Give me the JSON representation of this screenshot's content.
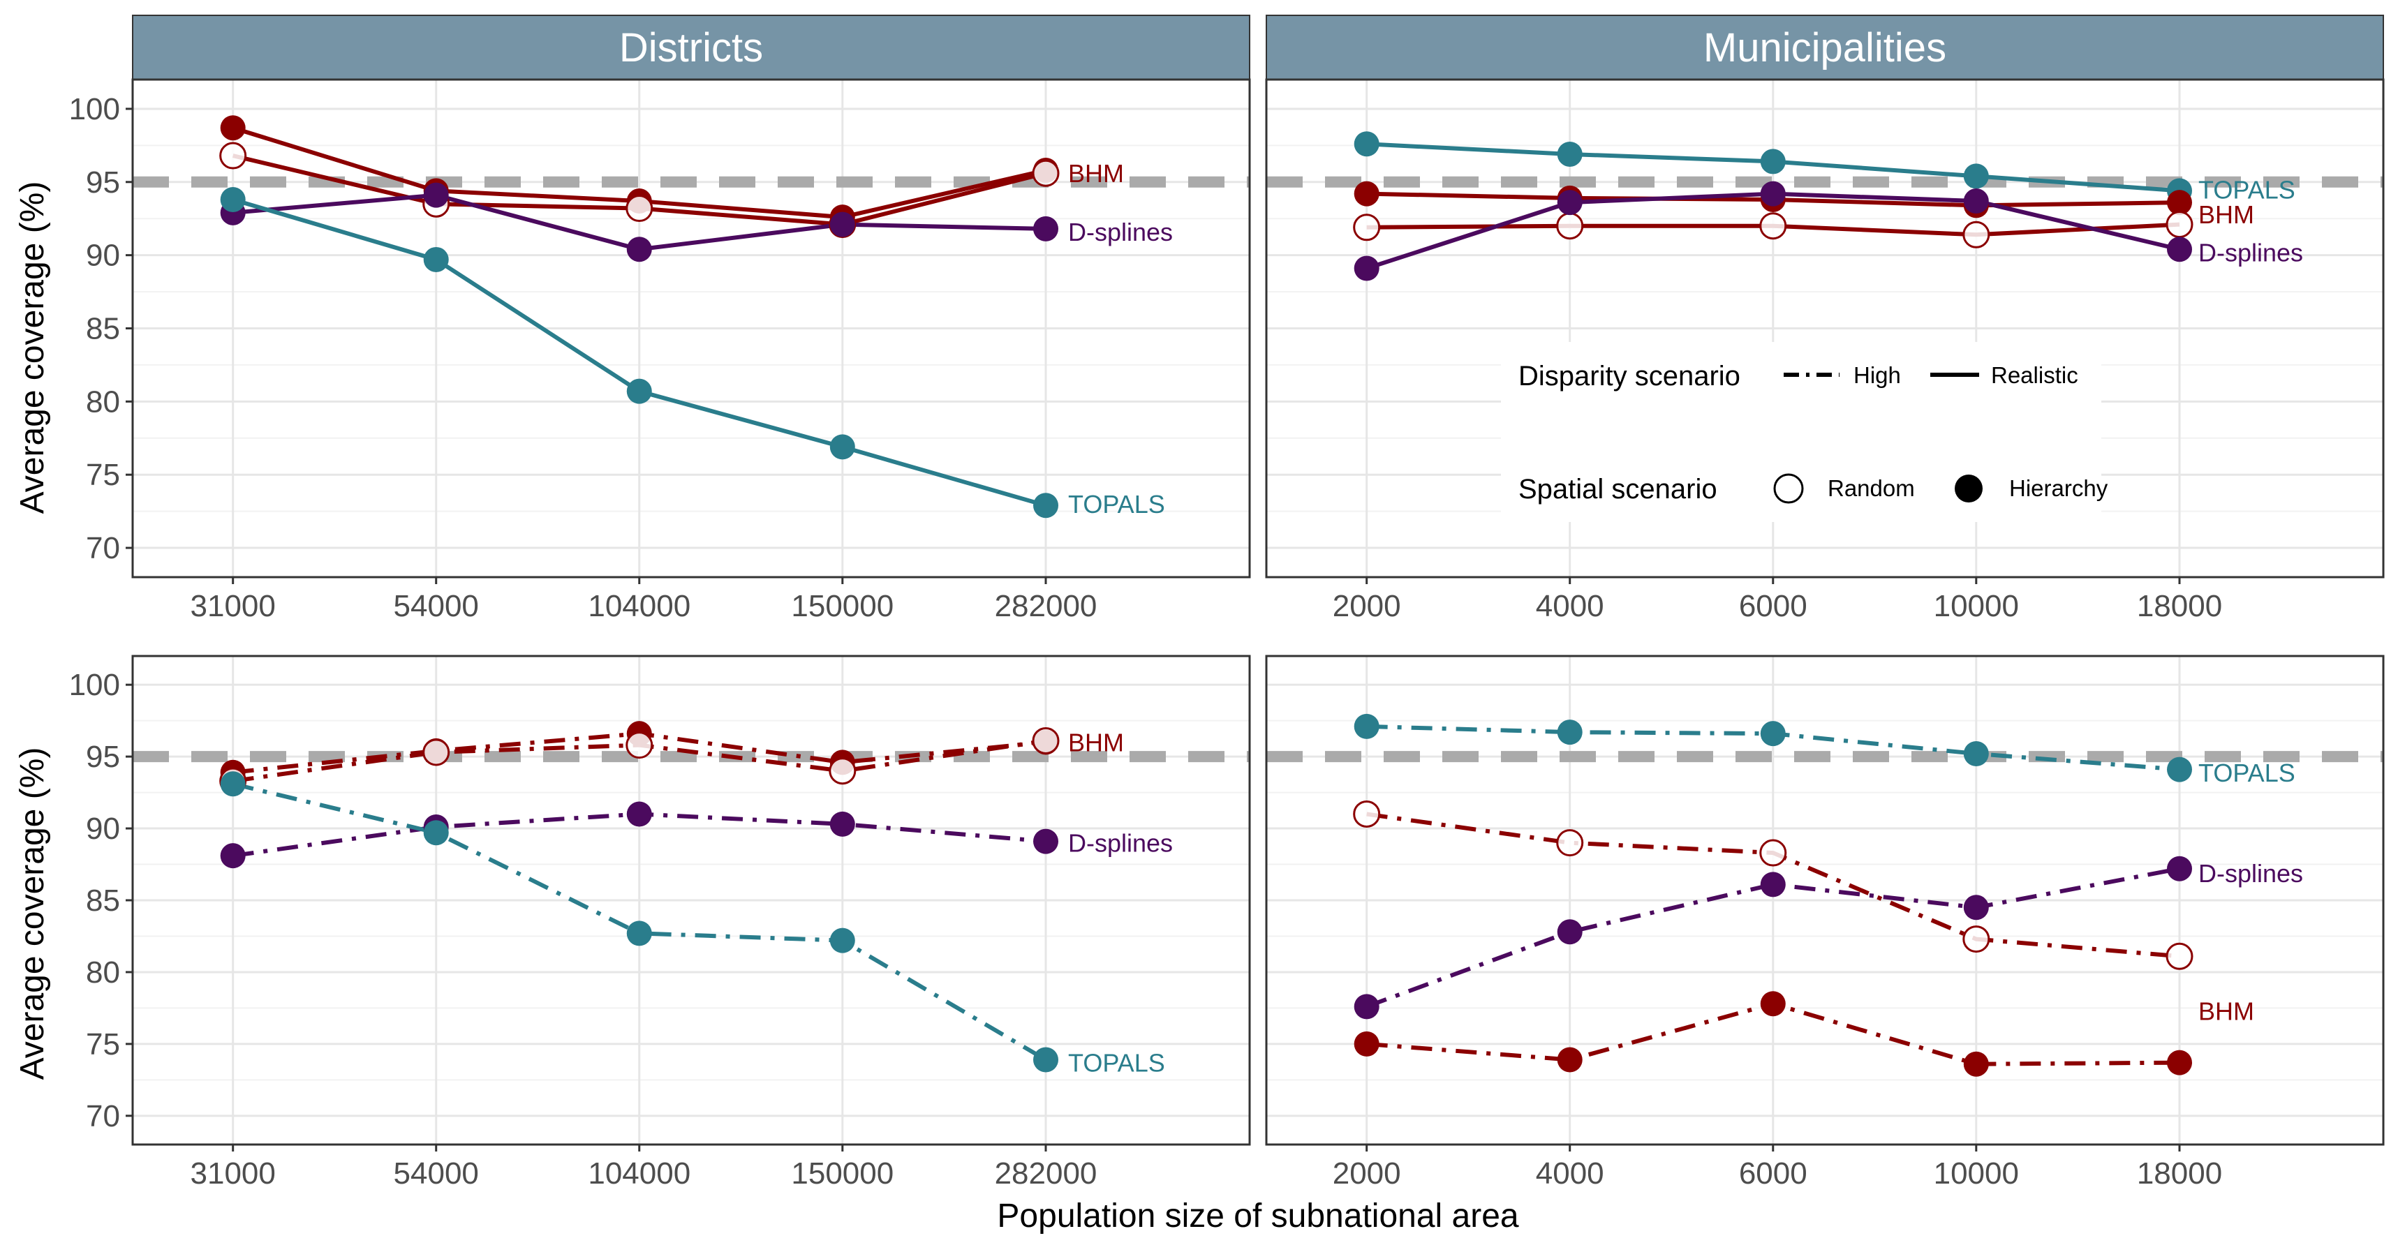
{
  "colors": {
    "BHM": "#8b0000",
    "D-splines": "#4b0a5e",
    "TOPALS": "#2a7d8c",
    "strip": "#7694a6",
    "reference": "#aaaaaa"
  },
  "facets": {
    "top": [
      "Districts",
      "Municipalities"
    ]
  },
  "axes": {
    "xlabel": "Population size of subnational area",
    "ylabel": "Average coverage (%)"
  },
  "legend": {
    "disparity_title": "Disparity scenario",
    "disparity_items": [
      "High",
      "Realistic"
    ],
    "spatial_title": "Spatial scenario",
    "spatial_items": [
      "Random",
      "Hierarchy"
    ]
  },
  "chart_data": [
    {
      "type": "line",
      "panel": "Districts / Realistic",
      "categories": [
        "31000",
        "54000",
        "104000",
        "150000",
        "282000"
      ],
      "ylim": [
        68,
        102
      ],
      "yticks": [
        70,
        75,
        80,
        85,
        90,
        95,
        100
      ],
      "reference_line": 95,
      "linetype": "Realistic",
      "series": [
        {
          "name": "BHM",
          "spatial": "Hierarchy",
          "values": [
            98.7,
            94.4,
            93.7,
            92.6,
            95.8
          ]
        },
        {
          "name": "BHM",
          "spatial": "Random",
          "values": [
            96.8,
            93.5,
            93.2,
            92.1,
            95.6
          ]
        },
        {
          "name": "D-splines",
          "spatial": "Hierarchy",
          "values": [
            92.9,
            94.1,
            90.4,
            92.1,
            91.8
          ]
        },
        {
          "name": "TOPALS",
          "spatial": "Hierarchy",
          "values": [
            93.8,
            89.7,
            80.7,
            76.9,
            72.9
          ]
        }
      ],
      "labels": [
        {
          "text": "BHM",
          "color": "BHM",
          "y": 95.6
        },
        {
          "text": "D-splines",
          "color": "D-splines",
          "y": 91.6
        },
        {
          "text": "TOPALS",
          "color": "TOPALS",
          "y": 73.0
        }
      ]
    },
    {
      "type": "line",
      "panel": "Municipalities / Realistic",
      "categories": [
        "2000",
        "4000",
        "6000",
        "10000",
        "18000"
      ],
      "ylim": [
        68,
        102
      ],
      "yticks": [
        70,
        75,
        80,
        85,
        90,
        95,
        100
      ],
      "reference_line": 95,
      "linetype": "Realistic",
      "series": [
        {
          "name": "TOPALS",
          "spatial": "Hierarchy",
          "values": [
            97.6,
            96.9,
            96.4,
            95.4,
            94.4
          ]
        },
        {
          "name": "BHM",
          "spatial": "Hierarchy",
          "values": [
            94.2,
            93.9,
            93.8,
            93.4,
            93.6
          ]
        },
        {
          "name": "BHM",
          "spatial": "Random",
          "values": [
            91.9,
            92.0,
            92.0,
            91.4,
            92.1
          ]
        },
        {
          "name": "D-splines",
          "spatial": "Hierarchy",
          "values": [
            89.1,
            93.6,
            94.2,
            93.7,
            90.4
          ]
        }
      ],
      "labels": [
        {
          "text": "TOPALS",
          "color": "TOPALS",
          "y": 94.5
        },
        {
          "text": "BHM",
          "color": "BHM",
          "y": 92.8
        },
        {
          "text": "D-splines",
          "color": "D-splines",
          "y": 90.2
        }
      ]
    },
    {
      "type": "line",
      "panel": "Districts / High",
      "categories": [
        "31000",
        "54000",
        "104000",
        "150000",
        "282000"
      ],
      "ylim": [
        68,
        102
      ],
      "yticks": [
        70,
        75,
        80,
        85,
        90,
        95,
        100
      ],
      "reference_line": 95,
      "linetype": "High",
      "series": [
        {
          "name": "BHM",
          "spatial": "Hierarchy",
          "values": [
            93.9,
            95.4,
            96.6,
            94.6,
            96.0
          ]
        },
        {
          "name": "BHM",
          "spatial": "Random",
          "values": [
            93.3,
            95.3,
            95.8,
            94.0,
            96.1
          ]
        },
        {
          "name": "D-splines",
          "spatial": "Hierarchy",
          "values": [
            88.1,
            90.1,
            91.0,
            90.3,
            89.1
          ]
        },
        {
          "name": "TOPALS",
          "spatial": "Hierarchy",
          "values": [
            93.1,
            89.7,
            82.7,
            82.2,
            73.9
          ]
        }
      ],
      "labels": [
        {
          "text": "BHM",
          "color": "BHM",
          "y": 96.0
        },
        {
          "text": "D-splines",
          "color": "D-splines",
          "y": 89.0
        },
        {
          "text": "TOPALS",
          "color": "TOPALS",
          "y": 73.7
        }
      ]
    },
    {
      "type": "line",
      "panel": "Municipalities / High",
      "categories": [
        "2000",
        "4000",
        "6000",
        "10000",
        "18000"
      ],
      "ylim": [
        68,
        102
      ],
      "yticks": [
        70,
        75,
        80,
        85,
        90,
        95,
        100
      ],
      "reference_line": 95,
      "linetype": "High",
      "series": [
        {
          "name": "TOPALS",
          "spatial": "Hierarchy",
          "values": [
            97.1,
            96.7,
            96.6,
            95.2,
            94.1
          ]
        },
        {
          "name": "BHM",
          "spatial": "Random",
          "values": [
            91.0,
            89.0,
            88.3,
            82.3,
            81.1
          ]
        },
        {
          "name": "D-splines",
          "spatial": "Hierarchy",
          "values": [
            77.6,
            82.8,
            86.1,
            84.5,
            87.2
          ]
        },
        {
          "name": "BHM",
          "spatial": "Hierarchy",
          "values": [
            75.0,
            73.9,
            77.8,
            73.6,
            73.7
          ]
        }
      ],
      "labels": [
        {
          "text": "TOPALS",
          "color": "TOPALS",
          "y": 93.9
        },
        {
          "text": "D-splines",
          "color": "D-splines",
          "y": 86.9
        },
        {
          "text": "BHM",
          "color": "BHM",
          "y": 77.3
        }
      ]
    }
  ]
}
